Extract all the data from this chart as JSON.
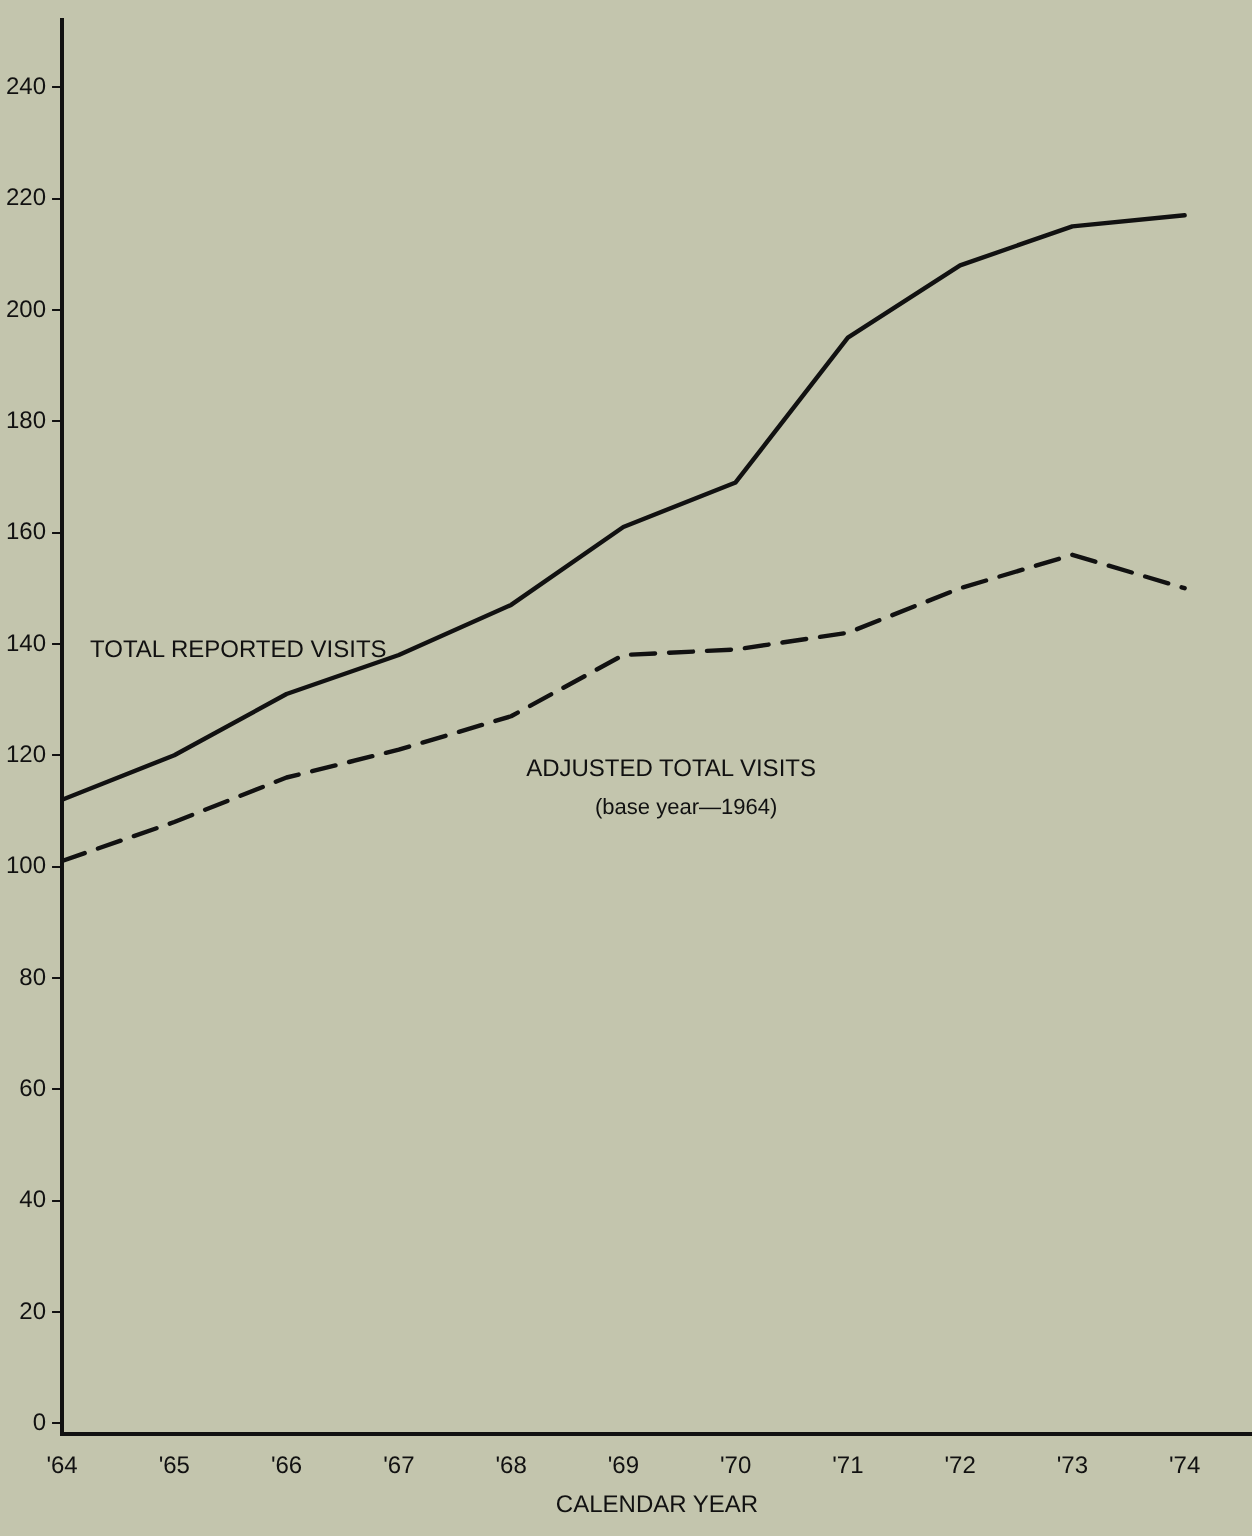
{
  "chart_data": {
    "type": "line",
    "xlabel": "CALENDAR YEAR",
    "x": [
      1964,
      1965,
      1966,
      1967,
      1968,
      1969,
      1970,
      1971,
      1972,
      1973,
      1974
    ],
    "series": [
      {
        "name": "TOTAL REPORTED VISITS",
        "color": "#111111",
        "line_style": "solid",
        "values": [
          112,
          120,
          131,
          138,
          147,
          161,
          169,
          195,
          208,
          215,
          217
        ]
      },
      {
        "name": "ADJUSTED TOTAL VISITS",
        "color": "#111111",
        "line_style": "dashed",
        "values": [
          101,
          108,
          116,
          121,
          127,
          138,
          139,
          142,
          150,
          156,
          150
        ]
      }
    ],
    "annotations": [
      "(base year—1964)"
    ],
    "xlim": [
      1964,
      1974.6
    ],
    "xticks": [
      {
        "value": 1964,
        "label": "'64"
      },
      {
        "value": 1965,
        "label": "'65"
      },
      {
        "value": 1966,
        "label": "'66"
      },
      {
        "value": 1967,
        "label": "'67"
      },
      {
        "value": 1968,
        "label": "'68"
      },
      {
        "value": 1969,
        "label": "'69"
      },
      {
        "value": 1970,
        "label": "'70"
      },
      {
        "value": 1971,
        "label": "'71"
      },
      {
        "value": 1972,
        "label": "'72"
      },
      {
        "value": 1973,
        "label": "'73"
      },
      {
        "value": 1974,
        "label": "'74"
      }
    ],
    "ylim": [
      -2,
      252
    ],
    "yticks": [
      0,
      20,
      40,
      60,
      80,
      100,
      120,
      140,
      160,
      180,
      200,
      220,
      240
    ],
    "grid": false,
    "legend": false,
    "marker": "none"
  }
}
